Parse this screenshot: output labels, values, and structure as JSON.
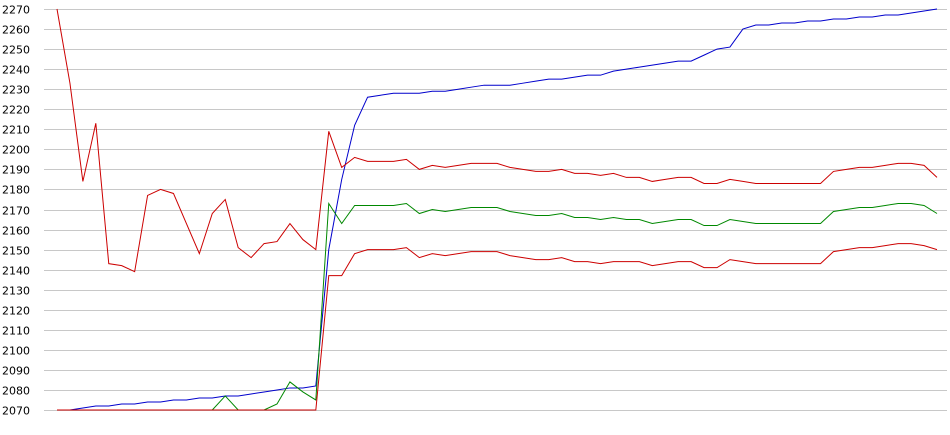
{
  "chart_data": {
    "type": "line",
    "title": "",
    "xlabel": "",
    "ylabel": "",
    "ylim": [
      2070,
      2270
    ],
    "yticks": [
      2070,
      2080,
      2090,
      2100,
      2110,
      2120,
      2130,
      2140,
      2150,
      2160,
      2170,
      2180,
      2190,
      2200,
      2210,
      2220,
      2230,
      2240,
      2250,
      2260,
      2270
    ],
    "grid": true,
    "legend": "none",
    "series": [
      {
        "color": "#0000cc",
        "values": [
          2070,
          2070,
          2071,
          2072,
          2072,
          2073,
          2073,
          2074,
          2074,
          2075,
          2075,
          2076,
          2076,
          2077,
          2077,
          2078,
          2079,
          2080,
          2081,
          2081,
          2082,
          2150,
          2185,
          2212,
          2226,
          2227,
          2228,
          2228,
          2228,
          2229,
          2229,
          2230,
          2231,
          2232,
          2232,
          2232,
          2233,
          2234,
          2235,
          2235,
          2236,
          2237,
          2237,
          2239,
          2240,
          2241,
          2242,
          2243,
          2244,
          2244,
          2247,
          2250,
          2251,
          2260,
          2262,
          2262,
          2263,
          2263,
          2264,
          2264,
          2265,
          2265,
          2266,
          2266,
          2267,
          2267,
          2268,
          2269,
          2270
        ]
      },
      {
        "color": "#008800",
        "values": [
          2070,
          2070,
          2070,
          2070,
          2070,
          2070,
          2070,
          2070,
          2070,
          2070,
          2070,
          2070,
          2070,
          2077,
          2070,
          2070,
          2070,
          2073,
          2084,
          2079,
          2075,
          2173,
          2163,
          2172,
          2172,
          2172,
          2172,
          2173,
          2168,
          2170,
          2169,
          2170,
          2171,
          2171,
          2171,
          2169,
          2168,
          2167,
          2167,
          2168,
          2166,
          2166,
          2165,
          2166,
          2165,
          2165,
          2163,
          2164,
          2165,
          2165,
          2162,
          2162,
          2165,
          2164,
          2163,
          2163,
          2163,
          2163,
          2163,
          2163,
          2169,
          2170,
          2171,
          2171,
          2172,
          2173,
          2173,
          2172,
          2168
        ]
      },
      {
        "color": "#cc0000",
        "values": [
          2270,
          2233,
          2184,
          2213,
          2143,
          2142,
          2139,
          2177,
          2180,
          2178,
          2163,
          2148,
          2168,
          2175,
          2151,
          2146,
          2153,
          2154,
          2163,
          2155,
          2150,
          2209,
          2191,
          2196,
          2194,
          2194,
          2194,
          2195,
          2190,
          2192,
          2191,
          2192,
          2193,
          2193,
          2193,
          2191,
          2190,
          2189,
          2189,
          2190,
          2188,
          2188,
          2187,
          2188,
          2186,
          2186,
          2184,
          2185,
          2186,
          2186,
          2183,
          2183,
          2185,
          2184,
          2183,
          2183,
          2183,
          2183,
          2183,
          2183,
          2189,
          2190,
          2191,
          2191,
          2192,
          2193,
          2193,
          2192,
          2186
        ]
      },
      {
        "color": "#cc0000",
        "values": [
          2070,
          2070,
          2070,
          2070,
          2070,
          2070,
          2070,
          2070,
          2070,
          2070,
          2070,
          2070,
          2070,
          2070,
          2070,
          2070,
          2070,
          2070,
          2070,
          2070,
          2070,
          2137,
          2137,
          2148,
          2150,
          2150,
          2150,
          2151,
          2146,
          2148,
          2147,
          2148,
          2149,
          2149,
          2149,
          2147,
          2146,
          2145,
          2145,
          2146,
          2144,
          2144,
          2143,
          2144,
          2144,
          2144,
          2142,
          2143,
          2144,
          2144,
          2141,
          2141,
          2145,
          2144,
          2143,
          2143,
          2143,
          2143,
          2143,
          2143,
          2149,
          2150,
          2151,
          2151,
          2152,
          2153,
          2153,
          2152,
          2150
        ]
      }
    ]
  }
}
